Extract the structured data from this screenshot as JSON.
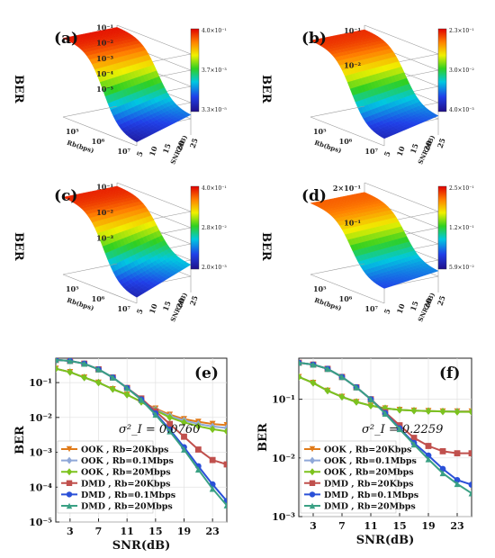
{
  "chart_data": [
    {
      "type": "surface3d",
      "panel": "(a)",
      "xlabel": "Rb(bps)",
      "ylabel": "SNR(dB)",
      "zlabel": "BER",
      "x_ticks": [
        "10⁵",
        "10⁶",
        "10⁷"
      ],
      "y_ticks": [
        "5",
        "10",
        "15",
        "20",
        "25"
      ],
      "z_ticks": [
        "10⁻¹",
        "10⁻²",
        "10⁻³",
        "10⁻⁴",
        "10⁻⁵"
      ],
      "colorbar_labels": [
        "4.0×10⁻¹",
        "3.7×10⁻³",
        "3.3×10⁻⁵"
      ],
      "shape": {
        "plateau": 0.4,
        "low_snr_end": 0.0001,
        "high_snr_end": 1e-05
      }
    },
    {
      "type": "surface3d",
      "panel": "(b)",
      "xlabel": "Rb(bps)",
      "ylabel": "SNR(dB)",
      "zlabel": "BER",
      "x_ticks": [
        "10⁵",
        "10⁶",
        "10⁷"
      ],
      "y_ticks": [
        "5",
        "10",
        "15",
        "20",
        "25"
      ],
      "z_ticks": [
        "10⁻¹",
        "10⁻²"
      ],
      "colorbar_labels": [
        "2.3×10⁻¹",
        "3.0×10⁻²",
        "4.0×10⁻³"
      ],
      "shape": {
        "plateau": 0.23,
        "low_snr_end": 0.008,
        "high_snr_end": 0.004
      }
    },
    {
      "type": "surface3d",
      "panel": "(c)",
      "xlabel": "Rb(bps)",
      "ylabel": "SNR(dB)",
      "zlabel": "BER",
      "x_ticks": [
        "10⁵",
        "10⁶",
        "10⁷"
      ],
      "y_ticks": [
        "5",
        "10",
        "15",
        "20",
        "25"
      ],
      "z_ticks": [
        "10⁻¹",
        "10⁻²",
        "10⁻³"
      ],
      "colorbar_labels": [
        "4.0×10⁻¹",
        "2.8×10⁻²",
        "2.0×10⁻³"
      ],
      "shape": {
        "plateau": 0.4,
        "low_snr_end": 0.01,
        "high_snr_end": 0.002
      }
    },
    {
      "type": "surface3d",
      "panel": "(d)",
      "xlabel": "Rb(bps)",
      "ylabel": "SNR(dB)",
      "zlabel": "BER",
      "x_ticks": [
        "10⁵",
        "10⁶",
        "10⁷"
      ],
      "y_ticks": [
        "5",
        "10",
        "15",
        "20",
        "25"
      ],
      "z_ticks": [
        "2×10⁻¹",
        "10⁻¹"
      ],
      "colorbar_labels": [
        "2.5×10⁻¹",
        "1.2×10⁻¹",
        "5.9×10⁻²"
      ],
      "shape": {
        "plateau": 0.25,
        "low_snr_end": 0.07,
        "high_snr_end": 0.059
      }
    },
    {
      "type": "line",
      "panel": "(e)",
      "annotation": "σ²_I = 0.0760",
      "xlabel": "SNR(dB)",
      "ylabel": "BER",
      "x": [
        1,
        3,
        5,
        7,
        9,
        11,
        13,
        15,
        17,
        19,
        21,
        23,
        25
      ],
      "x_ticks": [
        "3",
        "7",
        "11",
        "15",
        "19",
        "23"
      ],
      "y_ticks": [
        "10⁻¹",
        "10⁻²",
        "10⁻³",
        "10⁻⁴",
        "10⁻⁵"
      ],
      "xlim": [
        1,
        25
      ],
      "ylim_log10": [
        -5,
        -0.3
      ],
      "yscale": "log",
      "grid": true,
      "legend_position": "lower-left",
      "series": [
        {
          "name": "OOK , Rb=20Kbps",
          "color": "#e07b1a",
          "marker": "triangle-down",
          "values": [
            0.25,
            0.2,
            0.14,
            0.1,
            0.065,
            0.045,
            0.028,
            0.018,
            0.012,
            0.009,
            0.0075,
            0.0065,
            0.006
          ]
        },
        {
          "name": "OOK , Rb=0.1Mbps",
          "color": "#8fa8d8",
          "marker": "diamond",
          "values": [
            0.25,
            0.2,
            0.14,
            0.1,
            0.065,
            0.045,
            0.028,
            0.017,
            0.011,
            0.0082,
            0.0065,
            0.0055,
            0.005
          ]
        },
        {
          "name": "OOK , Rb=20Mbps",
          "color": "#7cc21e",
          "marker": "diamond",
          "values": [
            0.25,
            0.2,
            0.14,
            0.1,
            0.065,
            0.045,
            0.028,
            0.016,
            0.01,
            0.0072,
            0.0056,
            0.0046,
            0.004
          ]
        },
        {
          "name": "DMD , Rb=20Kbps",
          "color": "#c0504d",
          "marker": "square",
          "values": [
            0.45,
            0.42,
            0.35,
            0.24,
            0.14,
            0.07,
            0.035,
            0.015,
            0.0065,
            0.0028,
            0.0012,
            0.0006,
            0.00045
          ]
        },
        {
          "name": "DMD , Rb=0.1Mbps",
          "color": "#2a50d8",
          "marker": "circle",
          "values": [
            0.45,
            0.42,
            0.35,
            0.24,
            0.14,
            0.07,
            0.033,
            0.013,
            0.0045,
            0.0014,
            0.0004,
            0.00012,
            4e-05
          ]
        },
        {
          "name": "DMD , Rb=20Mbps",
          "color": "#3aa084",
          "marker": "triangle-up",
          "values": [
            0.45,
            0.42,
            0.35,
            0.24,
            0.14,
            0.07,
            0.032,
            0.012,
            0.004,
            0.0012,
            0.00032,
            9e-05,
            3e-05
          ]
        }
      ]
    },
    {
      "type": "line",
      "panel": "(f)",
      "annotation": "σ²_I = 0.2259",
      "xlabel": "SNR(dB)",
      "ylabel": "BER",
      "x": [
        1,
        3,
        5,
        7,
        9,
        11,
        13,
        15,
        17,
        19,
        21,
        23,
        25
      ],
      "x_ticks": [
        "3",
        "7",
        "11",
        "15",
        "19",
        "23"
      ],
      "y_ticks": [
        "10⁻¹",
        "10⁻²",
        "10⁻³"
      ],
      "xlim": [
        1,
        25
      ],
      "ylim_log10": [
        -3,
        -0.3
      ],
      "yscale": "log",
      "grid": true,
      "legend_position": "lower-left",
      "series": [
        {
          "name": "OOK , Rb=20Kbps",
          "color": "#e07b1a",
          "marker": "triangle-down",
          "values": [
            0.24,
            0.19,
            0.14,
            0.11,
            0.09,
            0.078,
            0.07,
            0.066,
            0.064,
            0.063,
            0.062,
            0.062,
            0.062
          ]
        },
        {
          "name": "OOK , Rb=0.1Mbps",
          "color": "#8fa8d8",
          "marker": "diamond",
          "values": [
            0.24,
            0.19,
            0.14,
            0.11,
            0.09,
            0.078,
            0.07,
            0.066,
            0.064,
            0.063,
            0.062,
            0.062,
            0.061
          ]
        },
        {
          "name": "OOK , Rb=20Mbps",
          "color": "#7cc21e",
          "marker": "diamond",
          "values": [
            0.24,
            0.19,
            0.14,
            0.11,
            0.09,
            0.078,
            0.07,
            0.066,
            0.064,
            0.063,
            0.062,
            0.061,
            0.061
          ]
        },
        {
          "name": "DMD , Rb=20Kbps",
          "color": "#c0504d",
          "marker": "square",
          "values": [
            0.42,
            0.39,
            0.33,
            0.24,
            0.16,
            0.1,
            0.06,
            0.036,
            0.022,
            0.016,
            0.013,
            0.012,
            0.012
          ]
        },
        {
          "name": "DMD , Rb=0.1Mbps",
          "color": "#2a50d8",
          "marker": "circle",
          "values": [
            0.42,
            0.39,
            0.33,
            0.24,
            0.16,
            0.1,
            0.058,
            0.032,
            0.018,
            0.011,
            0.0065,
            0.0042,
            0.0035
          ]
        },
        {
          "name": "DMD , Rb=20Mbps",
          "color": "#3aa084",
          "marker": "triangle-up",
          "values": [
            0.42,
            0.39,
            0.33,
            0.24,
            0.16,
            0.1,
            0.057,
            0.031,
            0.017,
            0.0095,
            0.0055,
            0.0036,
            0.0025
          ]
        }
      ]
    }
  ]
}
